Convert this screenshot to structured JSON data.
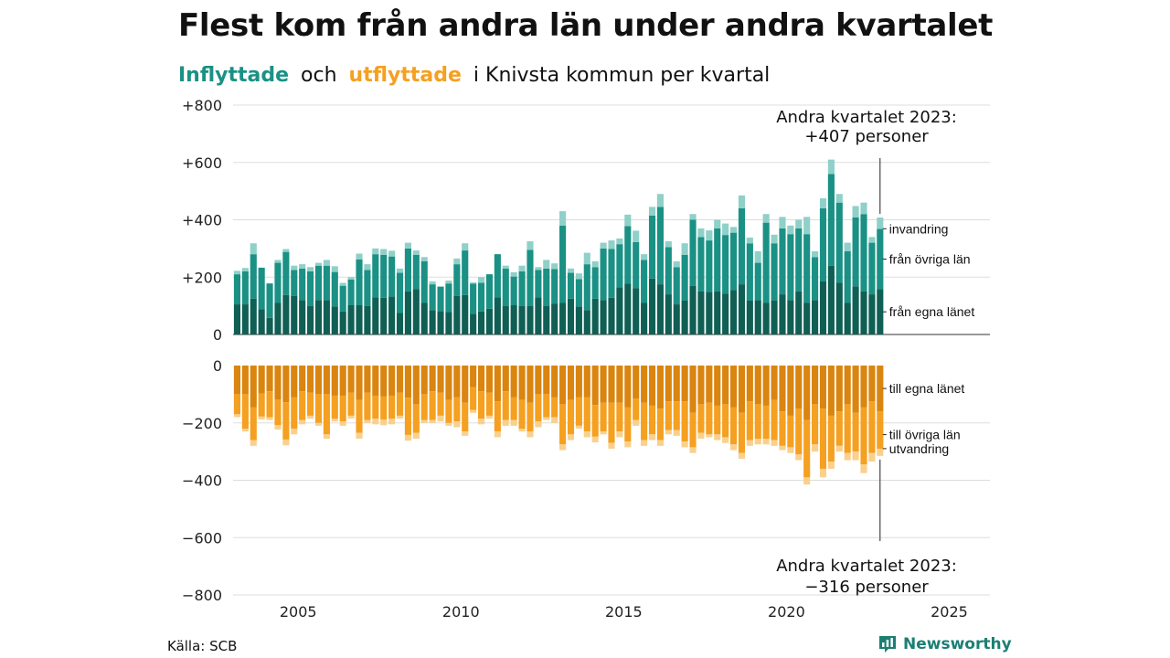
{
  "title": "Flest kom från andra län under andra kvartalet",
  "subtitle": {
    "part1": "Inflyttade",
    "part2": "och",
    "part3": "utflyttade",
    "part4": "i Knivsta  kommun  per  kvartal"
  },
  "source": "Källa: SCB",
  "logo": {
    "text": "Newsworthy",
    "icon": "newsworthy-bar-icon"
  },
  "colors": {
    "in_own": "#105f55",
    "in_other": "#1a9184",
    "in_emig": "#8fd0c8",
    "out_own": "#d98510",
    "out_other": "#f5a020",
    "out_emig": "#fad08c",
    "grid": "#dddddd"
  },
  "chart_data": {
    "type": "bar",
    "stacked": true,
    "x_start": 2003.0,
    "x_step": 0.25,
    "x_ticks": [
      "2005",
      "2010",
      "2015",
      "2020",
      "2025"
    ],
    "y_top": {
      "ylim": [
        0,
        800
      ],
      "ticks": [
        "0",
        "+200",
        "+400",
        "+600",
        "+800"
      ]
    },
    "y_bottom": {
      "ylim": [
        -800,
        0
      ],
      "ticks": [
        "0",
        "−200",
        "−400",
        "−600",
        "−800"
      ]
    },
    "series_in": [
      {
        "name": "från egna länet",
        "values": [
          105,
          105,
          125,
          88,
          58,
          110,
          138,
          135,
          120,
          100,
          120,
          120,
          98,
          80,
          102,
          102,
          100,
          130,
          128,
          132,
          75,
          150,
          158,
          110,
          85,
          82,
          78,
          135,
          138,
          72,
          80,
          90,
          130,
          100,
          102,
          100,
          100,
          130,
          100,
          108,
          110,
          125,
          98,
          85,
          125,
          120,
          128,
          165,
          178,
          162,
          110,
          195,
          175,
          140,
          105,
          118,
          170,
          150,
          148,
          150,
          142,
          155,
          175,
          118,
          120,
          110,
          118,
          140,
          120,
          150,
          110,
          120,
          185,
          240,
          180,
          110,
          168,
          150,
          140,
          158
        ]
      },
      {
        "name": "från övriga län",
        "values": [
          105,
          115,
          155,
          145,
          120,
          140,
          150,
          90,
          110,
          120,
          120,
          120,
          120,
          90,
          90,
          160,
          125,
          150,
          150,
          140,
          140,
          150,
          120,
          145,
          90,
          85,
          100,
          110,
          155,
          105,
          100,
          120,
          150,
          130,
          100,
          120,
          195,
          95,
          130,
          120,
          270,
          90,
          95,
          160,
          110,
          180,
          170,
          150,
          200,
          160,
          150,
          220,
          270,
          165,
          130,
          160,
          230,
          190,
          180,
          220,
          205,
          200,
          265,
          200,
          130,
          280,
          200,
          230,
          230,
          220,
          240,
          150,
          255,
          320,
          280,
          180,
          240,
          270,
          180,
          210
        ]
      },
      {
        "name": "invandring",
        "values": [
          12,
          12,
          38,
          0,
          0,
          10,
          10,
          15,
          15,
          15,
          10,
          20,
          20,
          10,
          8,
          20,
          20,
          20,
          20,
          20,
          15,
          20,
          15,
          15,
          10,
          0,
          10,
          20,
          25,
          5,
          20,
          0,
          0,
          10,
          15,
          20,
          30,
          10,
          30,
          20,
          50,
          15,
          20,
          40,
          20,
          20,
          30,
          20,
          40,
          40,
          20,
          30,
          45,
          20,
          20,
          40,
          20,
          30,
          35,
          30,
          40,
          20,
          45,
          20,
          40,
          30,
          30,
          40,
          30,
          30,
          60,
          20,
          35,
          50,
          30,
          30,
          40,
          40,
          20,
          40
        ]
      }
    ],
    "series_out": [
      {
        "name": "till egna länet",
        "values": [
          100,
          100,
          145,
          98,
          90,
          118,
          128,
          110,
          90,
          95,
          100,
          100,
          105,
          105,
          95,
          120,
          95,
          105,
          108,
          105,
          95,
          112,
          135,
          100,
          90,
          95,
          120,
          110,
          130,
          75,
          90,
          95,
          125,
          90,
          110,
          120,
          130,
          100,
          100,
          110,
          135,
          120,
          110,
          110,
          138,
          130,
          130,
          130,
          145,
          115,
          130,
          140,
          150,
          125,
          125,
          125,
          165,
          135,
          130,
          140,
          135,
          145,
          165,
          125,
          135,
          140,
          120,
          160,
          175,
          150,
          190,
          135,
          150,
          175,
          160,
          135,
          165,
          145,
          125,
          160
        ]
      },
      {
        "name": "till övriga län",
        "values": [
          70,
          120,
          115,
          80,
          90,
          90,
          130,
          110,
          100,
          80,
          100,
          140,
          80,
          90,
          80,
          115,
          95,
          80,
          80,
          80,
          80,
          130,
          100,
          90,
          100,
          80,
          80,
          85,
          100,
          80,
          95,
          80,
          105,
          100,
          80,
          100,
          100,
          95,
          80,
          70,
          140,
          120,
          100,
          120,
          110,
          100,
          140,
          100,
          120,
          75,
          130,
          100,
          110,
          100,
          100,
          140,
          120,
          100,
          110,
          100,
          115,
          130,
          140,
          135,
          120,
          115,
          140,
          120,
          110,
          160,
          200,
          140,
          210,
          160,
          120,
          170,
          135,
          200,
          180,
          130
        ]
      },
      {
        "name": "utvandring",
        "values": [
          10,
          10,
          20,
          10,
          10,
          15,
          20,
          20,
          15,
          10,
          10,
          15,
          10,
          15,
          10,
          20,
          10,
          20,
          20,
          20,
          10,
          20,
          20,
          10,
          10,
          20,
          10,
          20,
          15,
          10,
          20,
          10,
          20,
          20,
          20,
          10,
          20,
          20,
          10,
          20,
          20,
          20,
          10,
          20,
          20,
          10,
          20,
          20,
          20,
          20,
          20,
          20,
          20,
          15,
          20,
          20,
          20,
          20,
          10,
          20,
          20,
          20,
          20,
          20,
          20,
          20,
          20,
          15,
          20,
          20,
          25,
          25,
          30,
          25,
          20,
          25,
          30,
          30,
          30,
          25
        ]
      }
    ],
    "labels_in": [
      "invandring",
      "från övriga län",
      "från egna länet"
    ],
    "labels_out": [
      "till egna länet",
      "till övriga län",
      "utvandring"
    ],
    "annotation_top": {
      "line1": "Andra kvartalet 2023:",
      "line2": "+407 personer"
    },
    "annotation_bottom": {
      "line1": "Andra kvartalet 2023:",
      "line2": "−316 personer"
    }
  }
}
